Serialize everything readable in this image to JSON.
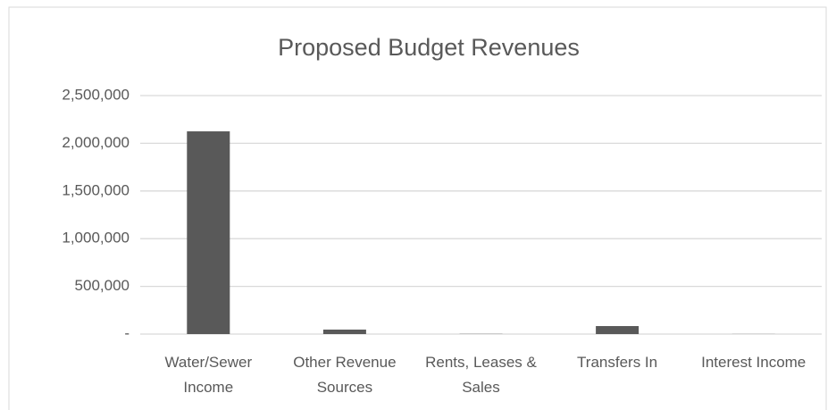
{
  "chart_data": {
    "type": "bar",
    "title": "Proposed Budget Revenues",
    "categories": [
      "Water/Sewer Income",
      "Other Revenue Sources",
      "Rents, Leases & Sales",
      "Transfers In",
      "Interest Income"
    ],
    "values": [
      2125000,
      47000,
      2000,
      84000,
      1000
    ],
    "color": "#595959",
    "ylim": [
      0,
      2500000
    ],
    "yticks": [
      {
        "value": 0,
        "label": "-"
      },
      {
        "value": 500000,
        "label": "500,000"
      },
      {
        "value": 1000000,
        "label": "1,000,000"
      },
      {
        "value": 1500000,
        "label": "1,500,000"
      },
      {
        "value": 2000000,
        "label": "2,000,000"
      },
      {
        "value": 2500000,
        "label": "2,500,000"
      }
    ],
    "grid": true
  }
}
